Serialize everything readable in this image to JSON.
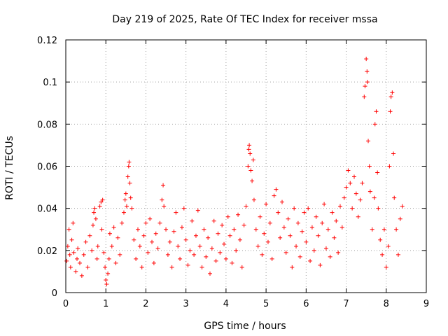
{
  "chart_data": {
    "type": "scatter",
    "title": "Day 219 of 2025, Rate Of TEC Index for receiver mssa",
    "xlabel": "GPS time / hours",
    "ylabel": "ROTI / TECUs",
    "xlim": [
      0,
      9
    ],
    "ylim": [
      0,
      0.12
    ],
    "x_ticks": [
      0,
      1,
      2,
      3,
      4,
      5,
      6,
      7,
      8,
      9
    ],
    "x_tick_labels": [
      "0",
      "1",
      "2",
      "3",
      "4",
      "5",
      "6",
      "7",
      "8",
      "9"
    ],
    "y_ticks": [
      0,
      0.02,
      0.04,
      0.06,
      0.08,
      0.1,
      0.12
    ],
    "y_tick_labels": [
      "0",
      "0.02",
      "0.04",
      "0.06",
      "0.08",
      "0.1",
      "0.12"
    ],
    "grid": true,
    "marker": "plus",
    "marker_color": "#ff0000",
    "series": [
      {
        "name": "ROTI",
        "points": [
          [
            0.02,
            0.015
          ],
          [
            0.05,
            0.022
          ],
          [
            0.08,
            0.03
          ],
          [
            0.1,
            0.018
          ],
          [
            0.12,
            0.012
          ],
          [
            0.15,
            0.025
          ],
          [
            0.18,
            0.033
          ],
          [
            0.2,
            0.019
          ],
          [
            0.25,
            0.01
          ],
          [
            0.28,
            0.016
          ],
          [
            0.3,
            0.021
          ],
          [
            0.35,
            0.014
          ],
          [
            0.4,
            0.008
          ],
          [
            0.45,
            0.018
          ],
          [
            0.5,
            0.024
          ],
          [
            0.55,
            0.012
          ],
          [
            0.6,
            0.027
          ],
          [
            0.65,
            0.02
          ],
          [
            0.68,
            0.032
          ],
          [
            0.7,
            0.038
          ],
          [
            0.72,
            0.04
          ],
          [
            0.75,
            0.035
          ],
          [
            0.78,
            0.016
          ],
          [
            0.8,
            0.022
          ],
          [
            0.85,
            0.041
          ],
          [
            0.88,
            0.043
          ],
          [
            0.9,
            0.03
          ],
          [
            0.92,
            0.044
          ],
          [
            0.95,
            0.019
          ],
          [
            0.98,
            0.012
          ],
          [
            1.0,
            0.006
          ],
          [
            1.02,
            0.004
          ],
          [
            1.05,
            0.009
          ],
          [
            1.08,
            0.016
          ],
          [
            1.1,
            0.028
          ],
          [
            1.15,
            0.022
          ],
          [
            1.2,
            0.031
          ],
          [
            1.25,
            0.014
          ],
          [
            1.3,
            0.026
          ],
          [
            1.35,
            0.018
          ],
          [
            1.4,
            0.033
          ],
          [
            1.45,
            0.038
          ],
          [
            1.48,
            0.044
          ],
          [
            1.5,
            0.047
          ],
          [
            1.52,
            0.041
          ],
          [
            1.55,
            0.055
          ],
          [
            1.57,
            0.06
          ],
          [
            1.58,
            0.062
          ],
          [
            1.6,
            0.052
          ],
          [
            1.62,
            0.045
          ],
          [
            1.65,
            0.04
          ],
          [
            1.7,
            0.025
          ],
          [
            1.75,
            0.016
          ],
          [
            1.8,
            0.03
          ],
          [
            1.85,
            0.022
          ],
          [
            1.9,
            0.012
          ],
          [
            1.95,
            0.027
          ],
          [
            2.0,
            0.033
          ],
          [
            2.05,
            0.019
          ],
          [
            2.1,
            0.035
          ],
          [
            2.15,
            0.024
          ],
          [
            2.2,
            0.014
          ],
          [
            2.25,
            0.028
          ],
          [
            2.3,
            0.021
          ],
          [
            2.35,
            0.033
          ],
          [
            2.4,
            0.044
          ],
          [
            2.43,
            0.051
          ],
          [
            2.45,
            0.041
          ],
          [
            2.5,
            0.03
          ],
          [
            2.55,
            0.018
          ],
          [
            2.6,
            0.024
          ],
          [
            2.65,
            0.012
          ],
          [
            2.7,
            0.029
          ],
          [
            2.75,
            0.038
          ],
          [
            2.8,
            0.022
          ],
          [
            2.85,
            0.016
          ],
          [
            2.9,
            0.031
          ],
          [
            2.95,
            0.04
          ],
          [
            3.0,
            0.025
          ],
          [
            3.05,
            0.013
          ],
          [
            3.1,
            0.02
          ],
          [
            3.15,
            0.034
          ],
          [
            3.2,
            0.018
          ],
          [
            3.25,
            0.027
          ],
          [
            3.3,
            0.039
          ],
          [
            3.35,
            0.022
          ],
          [
            3.4,
            0.012
          ],
          [
            3.45,
            0.03
          ],
          [
            3.5,
            0.017
          ],
          [
            3.55,
            0.026
          ],
          [
            3.6,
            0.009
          ],
          [
            3.65,
            0.021
          ],
          [
            3.7,
            0.034
          ],
          [
            3.75,
            0.015
          ],
          [
            3.8,
            0.028
          ],
          [
            3.85,
            0.019
          ],
          [
            3.9,
            0.032
          ],
          [
            3.95,
            0.023
          ],
          [
            4.0,
            0.016
          ],
          [
            4.05,
            0.036
          ],
          [
            4.1,
            0.027
          ],
          [
            4.15,
            0.014
          ],
          [
            4.2,
            0.03
          ],
          [
            4.25,
            0.02
          ],
          [
            4.3,
            0.037
          ],
          [
            4.35,
            0.025
          ],
          [
            4.4,
            0.012
          ],
          [
            4.45,
            0.032
          ],
          [
            4.5,
            0.041
          ],
          [
            4.55,
            0.06
          ],
          [
            4.57,
            0.068
          ],
          [
            4.58,
            0.07
          ],
          [
            4.6,
            0.066
          ],
          [
            4.62,
            0.058
          ],
          [
            4.65,
            0.053
          ],
          [
            4.68,
            0.063
          ],
          [
            4.7,
            0.044
          ],
          [
            4.75,
            0.03
          ],
          [
            4.8,
            0.022
          ],
          [
            4.85,
            0.036
          ],
          [
            4.9,
            0.018
          ],
          [
            4.95,
            0.028
          ],
          [
            5.0,
            0.042
          ],
          [
            5.05,
            0.024
          ],
          [
            5.1,
            0.033
          ],
          [
            5.15,
            0.016
          ],
          [
            5.2,
            0.046
          ],
          [
            5.25,
            0.049
          ],
          [
            5.3,
            0.038
          ],
          [
            5.35,
            0.026
          ],
          [
            5.4,
            0.043
          ],
          [
            5.45,
            0.031
          ],
          [
            5.5,
            0.019
          ],
          [
            5.55,
            0.035
          ],
          [
            5.6,
            0.027
          ],
          [
            5.65,
            0.012
          ],
          [
            5.7,
            0.04
          ],
          [
            5.75,
            0.022
          ],
          [
            5.8,
            0.033
          ],
          [
            5.85,
            0.017
          ],
          [
            5.9,
            0.029
          ],
          [
            5.95,
            0.038
          ],
          [
            6.0,
            0.024
          ],
          [
            6.05,
            0.04
          ],
          [
            6.1,
            0.015
          ],
          [
            6.15,
            0.031
          ],
          [
            6.2,
            0.02
          ],
          [
            6.25,
            0.036
          ],
          [
            6.3,
            0.027
          ],
          [
            6.35,
            0.013
          ],
          [
            6.4,
            0.033
          ],
          [
            6.45,
            0.042
          ],
          [
            6.5,
            0.021
          ],
          [
            6.55,
            0.03
          ],
          [
            6.6,
            0.017
          ],
          [
            6.65,
            0.038
          ],
          [
            6.7,
            0.026
          ],
          [
            6.75,
            0.034
          ],
          [
            6.8,
            0.019
          ],
          [
            6.85,
            0.041
          ],
          [
            6.9,
            0.031
          ],
          [
            6.95,
            0.045
          ],
          [
            7.0,
            0.05
          ],
          [
            7.05,
            0.058
          ],
          [
            7.1,
            0.052
          ],
          [
            7.15,
            0.04
          ],
          [
            7.2,
            0.055
          ],
          [
            7.25,
            0.047
          ],
          [
            7.3,
            0.036
          ],
          [
            7.35,
            0.044
          ],
          [
            7.4,
            0.052
          ],
          [
            7.45,
            0.093
          ],
          [
            7.47,
            0.098
          ],
          [
            7.5,
            0.111
          ],
          [
            7.52,
            0.105
          ],
          [
            7.53,
            0.1
          ],
          [
            7.55,
            0.072
          ],
          [
            7.58,
            0.06
          ],
          [
            7.6,
            0.048
          ],
          [
            7.65,
            0.03
          ],
          [
            7.7,
            0.045
          ],
          [
            7.72,
            0.08
          ],
          [
            7.75,
            0.086
          ],
          [
            7.78,
            0.057
          ],
          [
            7.8,
            0.04
          ],
          [
            7.85,
            0.025
          ],
          [
            7.9,
            0.018
          ],
          [
            7.95,
            0.03
          ],
          [
            8.0,
            0.012
          ],
          [
            8.05,
            0.022
          ],
          [
            8.08,
            0.06
          ],
          [
            8.1,
            0.086
          ],
          [
            8.12,
            0.093
          ],
          [
            8.15,
            0.095
          ],
          [
            8.18,
            0.066
          ],
          [
            8.2,
            0.045
          ],
          [
            8.25,
            0.03
          ],
          [
            8.3,
            0.018
          ],
          [
            8.35,
            0.035
          ],
          [
            8.4,
            0.041
          ]
        ]
      }
    ]
  }
}
